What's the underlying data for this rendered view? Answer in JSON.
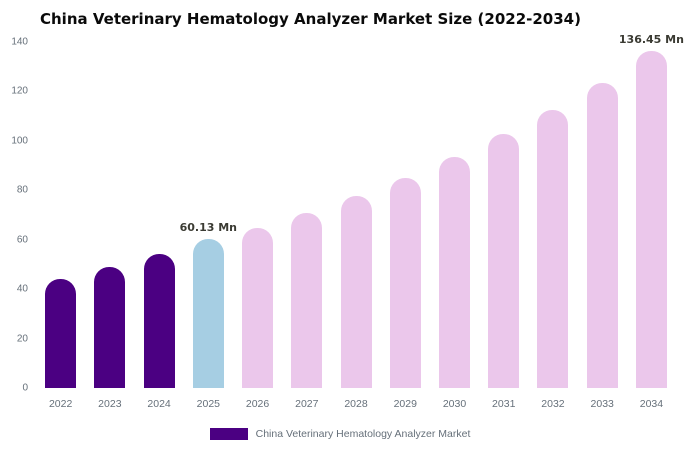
{
  "title": "China Veterinary Hematology Analyzer Market Size (2022-2034)",
  "legend": {
    "label": "China Veterinary Hematology Analyzer Market",
    "swatch_color": "#4B0082"
  },
  "chart_data": {
    "type": "bar",
    "title": "China Veterinary Hematology Analyzer Market Size (2022-2034)",
    "xlabel": "",
    "ylabel": "",
    "categories": [
      "2022",
      "2023",
      "2024",
      "2025",
      "2026",
      "2027",
      "2028",
      "2029",
      "2030",
      "2031",
      "2032",
      "2033",
      "2034"
    ],
    "values": [
      44.3,
      48.9,
      54.1,
      60.13,
      64.9,
      70.9,
      77.6,
      85.0,
      93.6,
      102.7,
      112.5,
      123.4,
      136.45
    ],
    "units": "Mn",
    "ylim": [
      0,
      140
    ],
    "yticks": [
      0,
      20,
      40,
      60,
      80,
      100,
      120,
      140
    ],
    "grid": false,
    "legend_position": "bottom",
    "bar_colors": {
      "historical": "#4B0082",
      "current": "#A6CEE3",
      "forecast": "#EBC7EB"
    },
    "color_per_bar": [
      "historical",
      "historical",
      "historical",
      "current",
      "forecast",
      "forecast",
      "forecast",
      "forecast",
      "forecast",
      "forecast",
      "forecast",
      "forecast",
      "forecast"
    ],
    "annotations": [
      {
        "category": "2025",
        "text": "60.13 Mn"
      },
      {
        "category": "2034",
        "text": "136.45 Mn"
      }
    ]
  }
}
